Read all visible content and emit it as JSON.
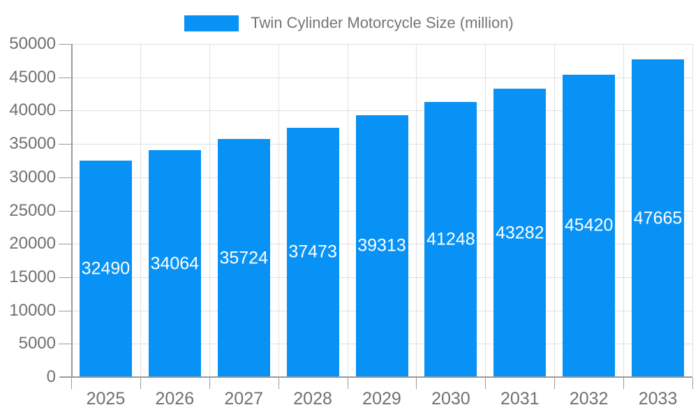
{
  "chart_data": {
    "type": "bar",
    "title": "",
    "legend_label": "Twin Cylinder Motorcycle Size (million)",
    "legend_position": "top",
    "categories": [
      "2025",
      "2026",
      "2027",
      "2028",
      "2029",
      "2030",
      "2031",
      "2032",
      "2033"
    ],
    "series": [
      {
        "name": "Twin Cylinder Motorcycle Size (million)",
        "values": [
          32490,
          34064,
          35724,
          37473,
          39313,
          41248,
          43282,
          45420,
          47665
        ]
      }
    ],
    "bar_value_labels": [
      "32490",
      "34064",
      "35724",
      "37473",
      "39313",
      "41248",
      "43282",
      "45420",
      "47665"
    ],
    "xlabel": "",
    "ylabel": "",
    "ylim": [
      0,
      50000
    ],
    "ytick_step": 5000,
    "ytick_labels": [
      "0",
      "5000",
      "10000",
      "15000",
      "20000",
      "25000",
      "30000",
      "35000",
      "40000",
      "45000",
      "50000"
    ],
    "grid": "on",
    "value_labels_inside_bars": true
  },
  "colors": {
    "bar_fill": "#0892F5",
    "bar_value_text": "#FFFFFF",
    "gridline": "#E0E0E0",
    "axis_line": "#9A9A9A",
    "axis_text": "#707070",
    "legend_text": "#757575",
    "background": "#FFFFFF"
  }
}
